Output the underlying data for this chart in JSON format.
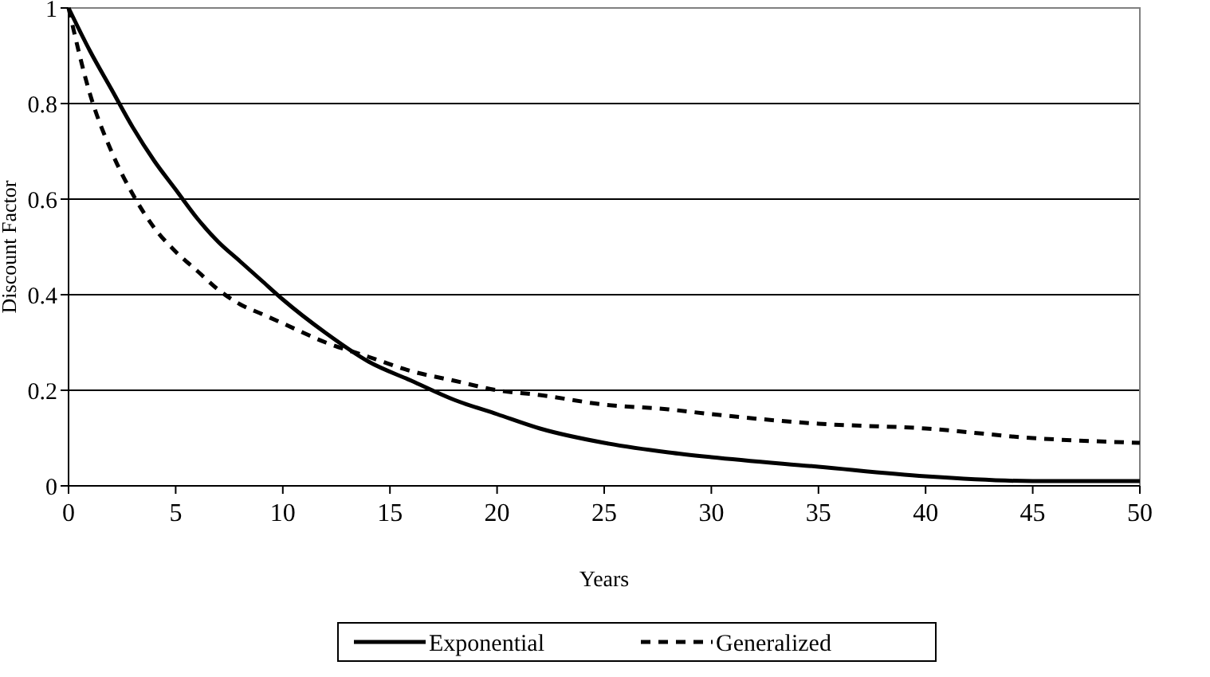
{
  "chart_data": {
    "type": "line",
    "xlabel": "Years",
    "ylabel": "Discount Factor",
    "x": [
      0,
      1,
      2,
      3,
      4,
      5,
      6,
      7,
      8,
      9,
      10,
      12,
      14,
      16,
      18,
      20,
      22,
      25,
      28,
      30,
      35,
      40,
      45,
      50
    ],
    "series": [
      {
        "name": "Exponential",
        "color": "#000000",
        "line_style": "solid",
        "values": [
          1,
          0.91,
          0.83,
          0.75,
          0.68,
          0.62,
          0.56,
          0.51,
          0.47,
          0.43,
          0.39,
          0.32,
          0.26,
          0.22,
          0.18,
          0.15,
          0.12,
          0.09,
          0.07,
          0.06,
          0.04,
          0.02,
          0.01,
          0.01
        ]
      },
      {
        "name": "Generalized",
        "color": "#000000",
        "line_style": "dashed",
        "values": [
          1,
          0.82,
          0.7,
          0.61,
          0.54,
          0.49,
          0.45,
          0.41,
          0.38,
          0.36,
          0.34,
          0.3,
          0.27,
          0.24,
          0.22,
          0.2,
          0.19,
          0.17,
          0.16,
          0.15,
          0.13,
          0.12,
          0.1,
          0.09
        ]
      }
    ],
    "xlim": [
      0,
      50
    ],
    "xticks": [
      0,
      5,
      10,
      15,
      20,
      25,
      30,
      35,
      40,
      45,
      50
    ],
    "ylim": [
      0,
      1
    ],
    "yticks": [
      0,
      0.2,
      0.4,
      0.6,
      0.8,
      1
    ],
    "grid": "y",
    "legend": "bottom",
    "marker": "none"
  }
}
